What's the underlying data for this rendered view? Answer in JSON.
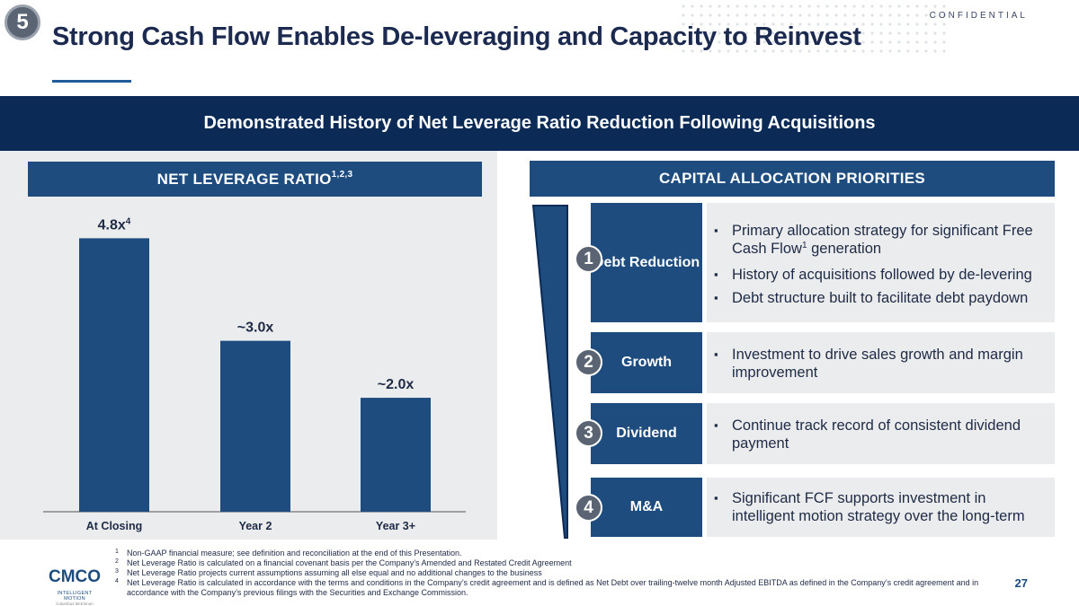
{
  "header": {
    "section_number": "5",
    "confidential": "CONFIDENTIAL",
    "title": "Strong Cash Flow Enables De-leveraging and Capacity to Reinvest"
  },
  "banner": "Demonstrated History of Net Leverage Ratio Reduction Following Acquisitions",
  "chart_panel": {
    "title": "NET LEVERAGE RATIO",
    "title_superscript": "1,2,3"
  },
  "chart_data": {
    "type": "bar",
    "title": "NET LEVERAGE RATIO1,2,3",
    "categories": [
      "At Closing",
      "Year 2",
      "Year 3+"
    ],
    "values": [
      4.8,
      3.0,
      2.0
    ],
    "data_labels": [
      "4.8x",
      "~3.0x",
      "~2.0x"
    ],
    "data_label_superscripts": [
      "4",
      "",
      ""
    ],
    "xlabel": "",
    "ylabel": "",
    "ylim": [
      0,
      5.2
    ],
    "grid": false,
    "bar_color": "#1e4c7e"
  },
  "capital_allocation": {
    "title": "CAPITAL ALLOCATION PRIORITIES",
    "priorities": [
      {
        "number": "1",
        "label": "Debt Reduction",
        "bullets": [
          {
            "text": "Primary allocation strategy for significant Free Cash Flow",
            "sup": "1",
            "after": " generation"
          },
          {
            "text": "History of acquisitions followed by de-levering",
            "sup": "",
            "after": ""
          },
          {
            "text": "Debt structure built to facilitate debt paydown",
            "sup": "",
            "after": ""
          }
        ]
      },
      {
        "number": "2",
        "label": "Growth",
        "bullets": [
          {
            "text": "Investment to drive sales growth and margin improvement",
            "sup": "",
            "after": ""
          }
        ]
      },
      {
        "number": "3",
        "label": "Dividend",
        "bullets": [
          {
            "text": "Continue track record of consistent dividend payment",
            "sup": "",
            "after": ""
          }
        ]
      },
      {
        "number": "4",
        "label": "M&A",
        "bullets": [
          {
            "text": "Significant FCF supports investment in intelligent motion strategy over the long-term",
            "sup": "",
            "after": ""
          }
        ]
      }
    ]
  },
  "footnotes": [
    {
      "num": "1",
      "text": "Non-GAAP financial measure; see definition and reconciliation at the end of this Presentation."
    },
    {
      "num": "2",
      "text": "Net Leverage Ratio is calculated on a financial covenant basis per the Company’s Amended and Restated Credit Agreement"
    },
    {
      "num": "3",
      "text": "Net Leverage Ratio projects current assumptions assuming all else equal and no additional changes to the business"
    },
    {
      "num": "4",
      "text": "Net Leverage Ratio is calculated in accordance with the terms and conditions in the Company’s credit agreement and is defined as Net Debt over trailing-twelve month Adjusted EBITDA as defined in the Company’s credit agreement and in accordance with the Company’s previous filings with the Securities and Exchange Commission."
    }
  ],
  "logo": {
    "mark": "CMCO",
    "tagline": "INTELLIGENT MOTION",
    "sub": "Columbus McKinnon"
  },
  "page_number": "27",
  "colors": {
    "navy": "#0b2a55",
    "accent_blue": "#1e4c7e",
    "panel_gray": "#ebecee",
    "circle_gray": "#5a6472"
  }
}
